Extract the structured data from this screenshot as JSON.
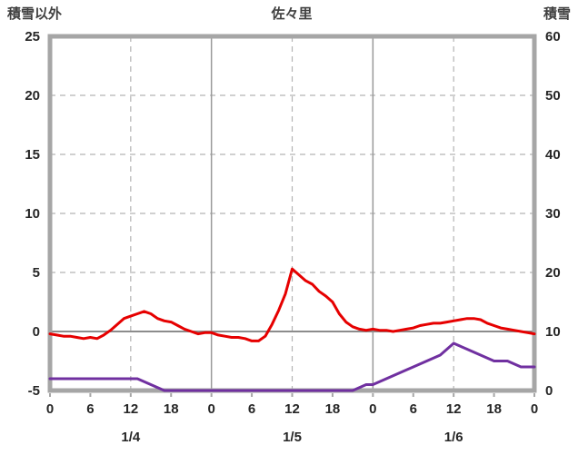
{
  "chart_data": {
    "type": "line",
    "title": "佐々里",
    "left_axis": {
      "label": "積雪以外",
      "min": -5,
      "max": 25,
      "ticks": [
        25,
        20,
        15,
        10,
        5,
        0,
        -5
      ]
    },
    "right_axis": {
      "label": "積雪",
      "min": 0,
      "max": 60,
      "ticks": [
        60,
        50,
        40,
        30,
        20,
        10,
        0
      ]
    },
    "x_axis": {
      "min": 0,
      "max": 72,
      "tick_interval": 6,
      "tick_labels": [
        "0",
        "6",
        "12",
        "18",
        "0",
        "6",
        "12",
        "18",
        "0",
        "6",
        "12",
        "18",
        "0"
      ],
      "day_labels": [
        "1/4",
        "1/5",
        "1/6"
      ],
      "day_label_positions": [
        12,
        36,
        60
      ],
      "solid_vlines": [
        24,
        48
      ],
      "dashed_vlines": [
        12,
        36,
        60
      ]
    },
    "grid": {
      "dashed_hlines_left_values": [
        20,
        15,
        10,
        5
      ],
      "zero_line_left_value": 0
    },
    "colors": {
      "red_series": "#e60000",
      "purple_series": "#7030a0",
      "frame": "#a6a6a6",
      "grid": "#b3b3b3",
      "zero_line": "#8c8c8c",
      "text": "#262626"
    },
    "series": [
      {
        "name": "series-red",
        "color": "#e60000",
        "axis": "left",
        "x_hours": [
          0,
          1,
          2,
          3,
          4,
          5,
          6,
          7,
          8,
          9,
          10,
          11,
          12,
          13,
          14,
          15,
          16,
          17,
          18,
          19,
          20,
          21,
          22,
          23,
          24,
          25,
          26,
          27,
          28,
          29,
          30,
          31,
          32,
          33,
          34,
          35,
          36,
          37,
          38,
          39,
          40,
          41,
          42,
          43,
          44,
          45,
          46,
          47,
          48,
          49,
          50,
          51,
          52,
          53,
          54,
          55,
          56,
          57,
          58,
          59,
          60,
          61,
          62,
          63,
          64,
          65,
          66,
          67,
          68,
          69,
          70,
          71,
          72
        ],
        "values": [
          -0.2,
          -0.3,
          -0.4,
          -0.4,
          -0.5,
          -0.6,
          -0.5,
          -0.6,
          -0.3,
          0.1,
          0.6,
          1.1,
          1.3,
          1.5,
          1.7,
          1.5,
          1.1,
          0.9,
          0.8,
          0.5,
          0.2,
          0,
          -0.2,
          -0.1,
          -0.1,
          -0.3,
          -0.4,
          -0.5,
          -0.5,
          -0.6,
          -0.8,
          -0.8,
          -0.4,
          0.6,
          1.8,
          3.2,
          5.3,
          4.8,
          4.3,
          4.0,
          3.4,
          3.0,
          2.5,
          1.5,
          0.8,
          0.4,
          0.2,
          0.1,
          0.2,
          0.1,
          0.1,
          0,
          0.1,
          0.2,
          0.3,
          0.5,
          0.6,
          0.7,
          0.7,
          0.8,
          0.9,
          1.0,
          1.1,
          1.1,
          1.0,
          0.7,
          0.5,
          0.3,
          0.2,
          0.1,
          0,
          -0.1,
          -0.2
        ]
      },
      {
        "name": "series-purple",
        "color": "#7030a0",
        "axis": "right",
        "x_hours": [
          0,
          1,
          2,
          3,
          4,
          5,
          6,
          7,
          8,
          9,
          10,
          11,
          12,
          13,
          14,
          15,
          16,
          17,
          18,
          19,
          20,
          21,
          22,
          23,
          24,
          25,
          26,
          27,
          28,
          29,
          30,
          31,
          32,
          33,
          34,
          35,
          36,
          37,
          38,
          39,
          40,
          41,
          42,
          43,
          44,
          45,
          46,
          47,
          48,
          49,
          50,
          51,
          52,
          53,
          54,
          55,
          56,
          57,
          58,
          59,
          60,
          61,
          62,
          63,
          64,
          65,
          66,
          67,
          68,
          69,
          70,
          71,
          72
        ],
        "values": [
          2,
          2,
          2,
          2,
          2,
          2,
          2,
          2,
          2,
          2,
          2,
          2,
          2,
          2,
          1.5,
          1,
          0.5,
          0,
          0,
          0,
          0,
          0,
          0,
          0,
          0,
          0,
          0,
          0,
          0,
          0,
          0,
          0,
          0,
          0,
          0,
          0,
          0,
          0,
          0,
          0,
          0,
          0,
          0,
          0,
          0,
          0,
          0.5,
          1,
          1,
          1.5,
          2,
          2.5,
          3,
          3.5,
          4,
          4.5,
          5,
          5.5,
          6,
          7,
          8,
          7.5,
          7,
          6.5,
          6,
          5.5,
          5,
          5,
          5,
          4.5,
          4,
          4,
          4
        ]
      }
    ]
  }
}
